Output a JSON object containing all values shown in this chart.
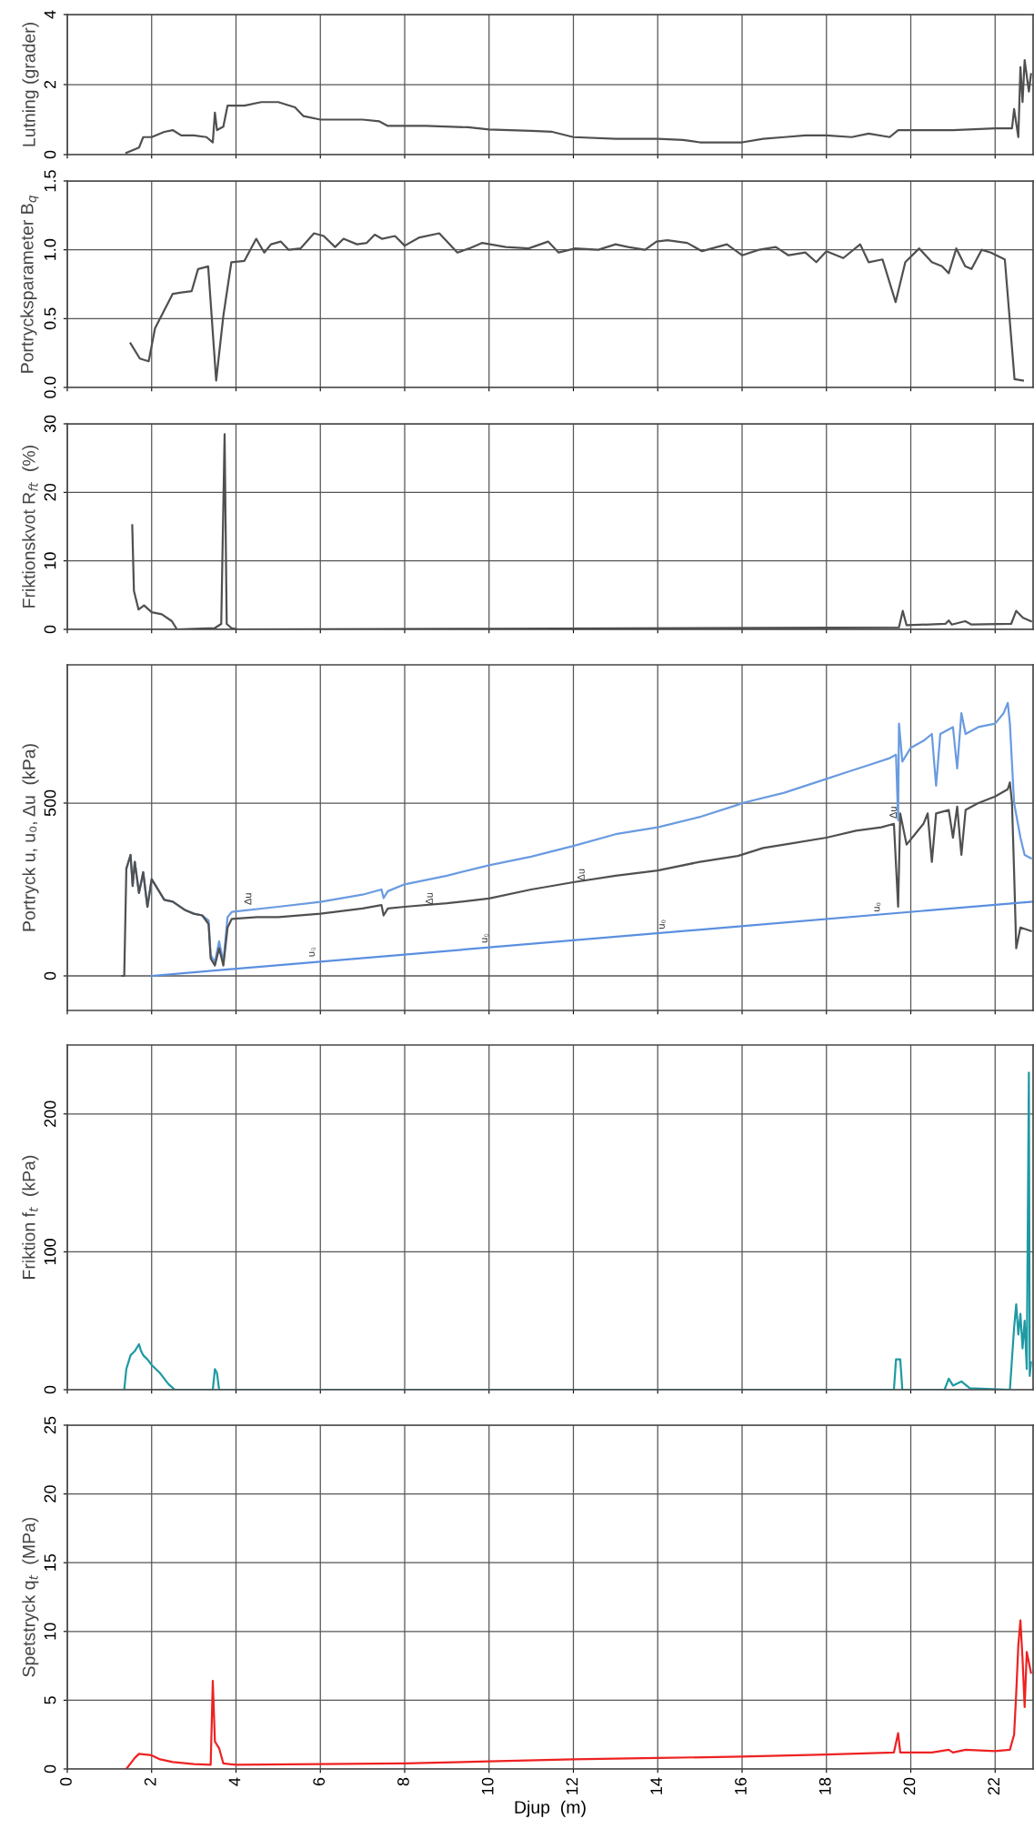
{
  "chart_data": [
    {
      "type": "line",
      "ylabel": "Lutning (grader)",
      "xlim": [
        0,
        22.9
      ],
      "xticks": [
        0,
        2,
        4,
        6,
        8,
        10,
        12,
        14,
        16,
        18,
        20,
        22
      ],
      "ylim": [
        0,
        4
      ],
      "yticks": [
        0,
        2,
        4
      ],
      "grid": true,
      "tick_labels": "y",
      "series": [
        {
          "color": "#505050",
          "x": [
            1.4,
            1.7,
            1.8,
            2.0,
            2.3,
            2.5,
            2.7,
            3.0,
            3.3,
            3.45,
            3.5,
            3.55,
            3.7,
            3.8,
            4.2,
            4.6,
            5.0,
            5.4,
            5.6,
            6.0,
            7.0,
            7.4,
            7.6,
            8.5,
            9.5,
            10.0,
            11.0,
            11.5,
            12.0,
            13.0,
            14.0,
            14.6,
            15.0,
            16.0,
            16.5,
            17.0,
            17.5,
            18.0,
            18.6,
            19.0,
            19.5,
            19.7,
            20.0,
            21.0,
            22.0,
            22.4,
            22.45,
            22.55,
            22.6,
            22.65,
            22.7,
            22.8,
            22.85
          ],
          "values": [
            0.05,
            0.2,
            0.5,
            0.5,
            0.65,
            0.7,
            0.55,
            0.55,
            0.5,
            0.35,
            1.2,
            0.7,
            0.8,
            1.4,
            1.4,
            1.5,
            1.5,
            1.35,
            1.1,
            1.0,
            1.0,
            0.95,
            0.82,
            0.82,
            0.78,
            0.72,
            0.68,
            0.65,
            0.5,
            0.45,
            0.45,
            0.42,
            0.35,
            0.35,
            0.45,
            0.5,
            0.55,
            0.55,
            0.5,
            0.6,
            0.5,
            0.7,
            0.7,
            0.7,
            0.75,
            0.75,
            1.3,
            0.5,
            2.5,
            1.5,
            2.7,
            1.8,
            2.3
          ]
        }
      ]
    },
    {
      "type": "line",
      "ylabel": "Portrycksparameter B$_{q}$",
      "xlim": [
        0,
        22.9
      ],
      "xticks": [
        0,
        2,
        4,
        6,
        8,
        10,
        12,
        14,
        16,
        18,
        20,
        22
      ],
      "ylim": [
        0,
        1.5
      ],
      "yticks": [
        {
          "value": 0,
          "label": "0.0"
        },
        {
          "value": 0.5,
          "label": "0.5"
        },
        {
          "value": 1,
          "label": "1.0"
        },
        {
          "value": 1.5,
          "label": "1.5"
        }
      ],
      "grid": true,
      "tick_labels": "y",
      "series": [
        {
          "color": "#505050",
          "x": [
            1.5,
            1.72,
            1.93,
            2.08,
            2.5,
            2.7,
            2.95,
            3.1,
            3.34,
            3.53,
            3.7,
            3.89,
            4.2,
            4.48,
            4.67,
            4.83,
            5.06,
            5.25,
            5.53,
            5.85,
            6.08,
            6.35,
            6.55,
            6.87,
            7.1,
            7.29,
            7.46,
            7.77,
            8.0,
            8.35,
            8.82,
            9.25,
            9.53,
            9.84,
            10.4,
            10.94,
            11.4,
            11.65,
            12.04,
            12.59,
            13.0,
            13.3,
            13.7,
            13.97,
            14.23,
            14.7,
            15.05,
            15.64,
            16.0,
            16.4,
            16.8,
            17.1,
            17.5,
            17.76,
            18.0,
            18.4,
            18.8,
            19.0,
            19.33,
            19.64,
            19.87,
            20.2,
            20.5,
            20.74,
            20.9,
            21.08,
            21.29,
            21.44,
            21.68,
            21.9,
            22.23,
            22.46,
            22.66
          ],
          "values": [
            0.32,
            0.21,
            0.19,
            0.43,
            0.68,
            0.69,
            0.7,
            0.86,
            0.88,
            0.05,
            0.52,
            0.91,
            0.92,
            1.08,
            0.98,
            1.04,
            1.06,
            1.0,
            1.01,
            1.12,
            1.1,
            1.02,
            1.08,
            1.04,
            1.05,
            1.11,
            1.08,
            1.1,
            1.03,
            1.09,
            1.12,
            0.98,
            1.01,
            1.05,
            1.02,
            1.01,
            1.06,
            0.98,
            1.01,
            1.0,
            1.04,
            1.02,
            1.0,
            1.06,
            1.07,
            1.05,
            0.99,
            1.04,
            0.96,
            1.0,
            1.02,
            0.96,
            0.98,
            0.91,
            0.99,
            0.94,
            1.04,
            0.91,
            0.93,
            0.62,
            0.91,
            1.01,
            0.91,
            0.88,
            0.83,
            1.01,
            0.88,
            0.86,
            1.0,
            0.98,
            0.93,
            0.06,
            0.05
          ]
        }
      ]
    },
    {
      "type": "line",
      "ylabel": "Friktionskvot R$_{ft}$  (%)",
      "xlim": [
        0,
        22.9
      ],
      "xticks": [
        0,
        2,
        4,
        6,
        8,
        10,
        12,
        14,
        16,
        18,
        20,
        22
      ],
      "ylim": [
        0,
        30
      ],
      "yticks": [
        0,
        10,
        20,
        30
      ],
      "grid": true,
      "tick_labels": "y",
      "series": [
        {
          "color": "#505050",
          "x": [
            1.54,
            1.58,
            1.69,
            1.82,
            2.0,
            2.24,
            2.48,
            2.6,
            3.5,
            3.65,
            3.73,
            3.78,
            3.89,
            4.04,
            10.0,
            19.72,
            19.81,
            19.9,
            20.82,
            20.9,
            20.97,
            21.29,
            21.44,
            22.38,
            22.5,
            22.66,
            22.85
          ],
          "values": [
            15.2,
            5.6,
            2.9,
            3.5,
            2.5,
            2.2,
            1.2,
            0,
            0.2,
            0.8,
            28.5,
            0.8,
            0.2,
            0,
            0.1,
            0.3,
            2.7,
            0.6,
            0.8,
            1.3,
            0.7,
            1.2,
            0.7,
            0.8,
            2.7,
            1.7,
            1.2
          ]
        }
      ]
    },
    {
      "type": "line",
      "ylabel": "Portryck u, u₀, Δu  (kPa)",
      "xlim": [
        0,
        22.9
      ],
      "xticks": [
        0,
        2,
        4,
        6,
        8,
        10,
        12,
        14,
        16,
        18,
        20,
        22
      ],
      "ylim": [
        -100,
        900
      ],
      "yticks": [
        0,
        500
      ],
      "grid": true,
      "tick_labels": "y",
      "annotations": [
        {
          "text": "Δu",
          "x": 4.3,
          "y": 205
        },
        {
          "text": "Δu",
          "x": 8.6,
          "y": 206
        },
        {
          "text": "Δu",
          "x": 12.2,
          "y": 275
        },
        {
          "text": "Δu",
          "x": 19.6,
          "y": 455
        },
        {
          "text": "u₀",
          "x": 5.8,
          "y": 55
        },
        {
          "text": "u₀",
          "x": 9.9,
          "y": 95
        },
        {
          "text": "u₀",
          "x": 14.1,
          "y": 135
        },
        {
          "text": "u₀",
          "x": 19.2,
          "y": 185
        }
      ],
      "series": [
        {
          "color": "#6a9be0",
          "x": [
            1.4,
            1.5,
            1.55,
            1.6,
            1.7,
            1.8,
            1.9,
            2.0,
            2.1,
            2.3,
            2.5,
            2.8,
            3.0,
            3.2,
            3.35,
            3.4,
            3.5,
            3.6,
            3.7,
            3.8,
            3.9,
            5,
            6,
            7,
            7.45,
            7.5,
            7.6,
            8,
            9,
            10,
            11,
            12,
            13,
            14,
            15,
            15.9,
            16,
            17,
            18,
            18.5,
            19,
            19.5,
            19.65,
            19.7,
            19.72,
            19.8,
            20,
            20.3,
            20.5,
            20.6,
            20.7,
            21,
            21.1,
            21.2,
            21.3,
            21.6,
            22,
            22.2,
            22.3,
            22.35,
            22.45,
            22.6,
            22.7,
            22.85
          ],
          "values": [
            310,
            350,
            260,
            330,
            240,
            300,
            200,
            280,
            260,
            220,
            215,
            190,
            180,
            175,
            160,
            60,
            40,
            100,
            40,
            170,
            185,
            200,
            214,
            235,
            250,
            225,
            245,
            265,
            290,
            320,
            345,
            376,
            410,
            430,
            460,
            495,
            500,
            530,
            570,
            590,
            610,
            630,
            640,
            450,
            730,
            620,
            660,
            680,
            700,
            550,
            700,
            720,
            600,
            760,
            700,
            720,
            730,
            760,
            790,
            730,
            500,
            400,
            350,
            340
          ]
        },
        {
          "color": "#505050",
          "x": [
            1.3,
            1.35,
            1.4,
            1.5,
            1.55,
            1.6,
            1.7,
            1.8,
            1.9,
            2.0,
            2.1,
            2.3,
            2.5,
            2.8,
            3.0,
            3.2,
            3.35,
            3.4,
            3.5,
            3.6,
            3.7,
            3.8,
            3.9,
            4.5,
            5.0,
            6.0,
            7.0,
            7.45,
            7.5,
            7.6,
            8.0,
            9.0,
            10,
            11,
            12,
            13,
            14,
            15,
            15.9,
            16.5,
            17,
            18,
            18.7,
            19.3,
            19.6,
            19.7,
            19.75,
            19.9,
            20.1,
            20.3,
            20.4,
            20.5,
            20.6,
            20.9,
            21,
            21.1,
            21.2,
            21.3,
            21.6,
            22,
            22.3,
            22.35,
            22.4,
            22.45,
            22.5,
            22.6,
            22.85
          ],
          "values": [
            0,
            0,
            310,
            350,
            260,
            330,
            240,
            300,
            200,
            280,
            260,
            220,
            215,
            190,
            180,
            175,
            150,
            50,
            30,
            80,
            30,
            140,
            165,
            170,
            170,
            180,
            195,
            205,
            175,
            195,
            200,
            210,
            224,
            250,
            271,
            290,
            305,
            330,
            347,
            370,
            380,
            400,
            420,
            430,
            440,
            200,
            470,
            380,
            410,
            440,
            470,
            330,
            470,
            480,
            400,
            490,
            350,
            480,
            500,
            519,
            540,
            560,
            500,
            300,
            80,
            140,
            130
          ]
        },
        {
          "color": "#5b8fe0",
          "x": [
            2,
            22.9
          ],
          "values": [
            0,
            215
          ]
        }
      ]
    },
    {
      "type": "line",
      "ylabel": "Friktion f$_{t}$  (kPa)",
      "xlim": [
        0,
        22.9
      ],
      "xticks": [
        0,
        2,
        4,
        6,
        8,
        10,
        12,
        14,
        16,
        18,
        20,
        22
      ],
      "ylim": [
        0,
        250
      ],
      "yticks": [
        0,
        100,
        200
      ],
      "grid": true,
      "tick_labels": "y",
      "series": [
        {
          "color": "#1f9aa3",
          "x": [
            1.35,
            1.4,
            1.5,
            1.6,
            1.7,
            1.75,
            1.8,
            1.9,
            2.0,
            2.2,
            2.4,
            2.55,
            3.45,
            3.5,
            3.55,
            3.6,
            19.6,
            19.65,
            19.75,
            19.8,
            20.8,
            20.9,
            21.0,
            21.2,
            21.4,
            22.35,
            22.45,
            22.5,
            22.55,
            22.6,
            22.65,
            22.7,
            22.75,
            22.8,
            22.82,
            22.85
          ],
          "values": [
            0,
            15,
            25,
            28,
            33,
            28,
            25,
            22,
            18,
            12,
            4,
            0,
            0,
            15,
            12,
            0,
            0,
            22,
            22,
            0,
            0,
            8,
            3,
            6,
            1,
            0,
            45,
            62,
            40,
            55,
            30,
            50,
            15,
            230,
            10,
            20
          ]
        }
      ]
    },
    {
      "type": "line",
      "ylabel": "Spetstryck q$_{t}$  (MPa)",
      "xlabel": "Djup  (m)",
      "xlim": [
        0,
        22.9
      ],
      "xticks": [
        0,
        2,
        4,
        6,
        8,
        10,
        12,
        14,
        16,
        18,
        20,
        22
      ],
      "ylim": [
        0,
        25
      ],
      "yticks": [
        0,
        5,
        10,
        15,
        20,
        25
      ],
      "grid": true,
      "series": [
        {
          "color": "#ee2222",
          "x": [
            1.4,
            1.6,
            1.7,
            2.0,
            2.2,
            2.5,
            3.0,
            3.4,
            3.45,
            3.5,
            3.6,
            3.7,
            4,
            6,
            8,
            10,
            12,
            14,
            16,
            18,
            19.6,
            19.7,
            19.75,
            20.5,
            20.9,
            21.0,
            21.3,
            22,
            22.35,
            22.45,
            22.5,
            22.55,
            22.6,
            22.65,
            22.7,
            22.75,
            22.85
          ],
          "values": [
            0,
            0.8,
            1.1,
            1.0,
            0.7,
            0.5,
            0.35,
            0.3,
            6.4,
            2,
            1.5,
            0.4,
            0.3,
            0.35,
            0.4,
            0.55,
            0.7,
            0.8,
            0.9,
            1.05,
            1.2,
            2.6,
            1.2,
            1.2,
            1.4,
            1.2,
            1.4,
            1.3,
            1.4,
            2.5,
            5.5,
            9,
            10.8,
            8,
            4.5,
            8.5,
            7
          ]
        }
      ]
    }
  ]
}
